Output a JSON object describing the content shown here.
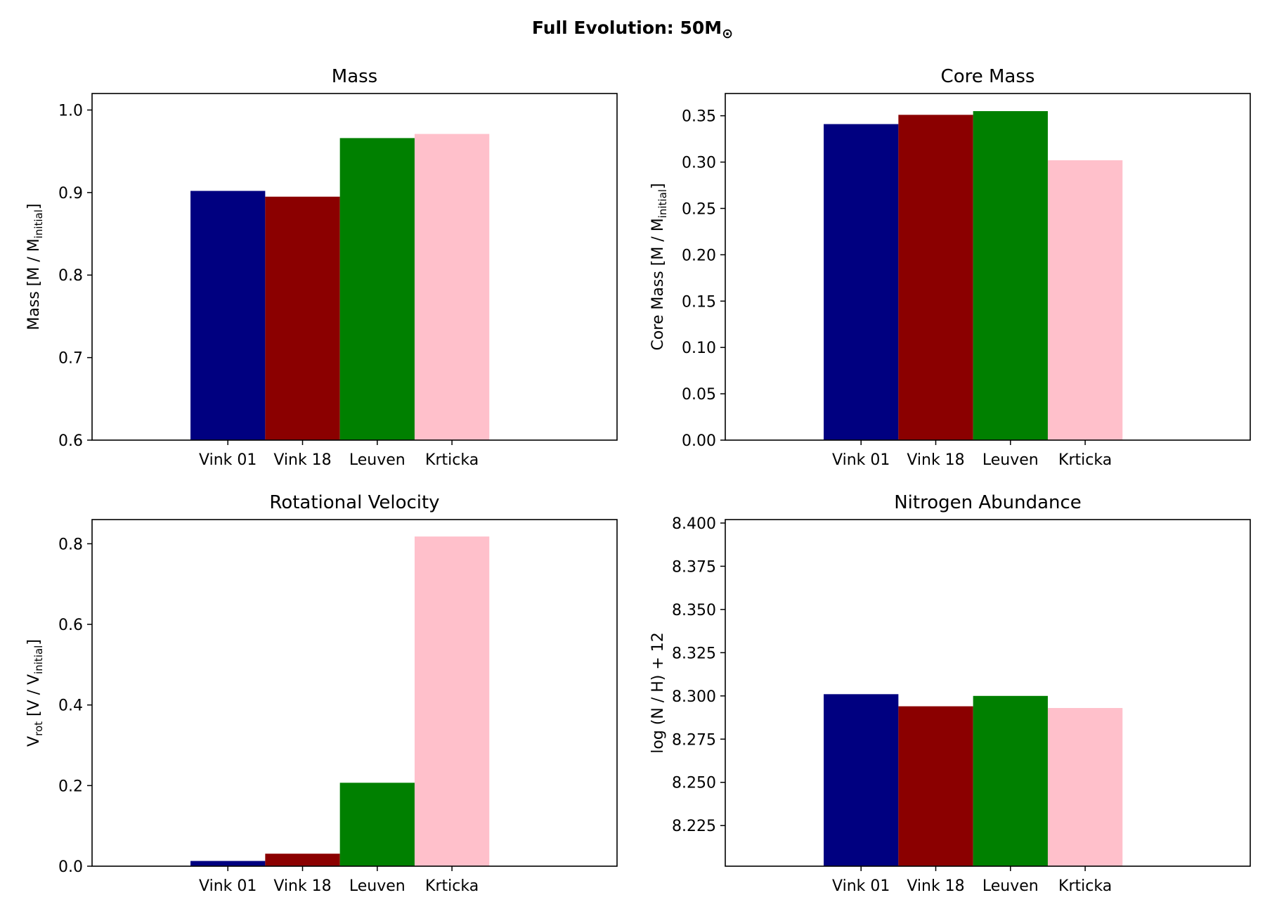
{
  "figure": {
    "suptitle": "Full Evolution: 50M",
    "suptitle_symbol": "⊙"
  },
  "chart_data": [
    {
      "type": "bar",
      "title": "Mass",
      "ylabel": "Mass [M / M",
      "ylabel_sub": "initial",
      "ylabel_end": "]",
      "categories": [
        "Vink 01",
        "Vink 18",
        "Leuven",
        "Krticka"
      ],
      "values": [
        0.902,
        0.895,
        0.966,
        0.971
      ],
      "colors": [
        "#000080",
        "#8b0000",
        "#008000",
        "#ffc0cb"
      ],
      "ylim": [
        0.6,
        1.02
      ],
      "yticks": [
        0.6,
        0.7,
        0.8,
        0.9,
        1.0
      ],
      "ytick_labels": [
        "0.6",
        "0.7",
        "0.8",
        "0.9",
        "1.0"
      ],
      "grid": false
    },
    {
      "type": "bar",
      "title": "Core Mass",
      "ylabel": "Core Mass [M / M",
      "ylabel_sub": "initial",
      "ylabel_end": "]",
      "categories": [
        "Vink 01",
        "Vink 18",
        "Leuven",
        "Krticka"
      ],
      "values": [
        0.341,
        0.351,
        0.355,
        0.302
      ],
      "colors": [
        "#000080",
        "#8b0000",
        "#008000",
        "#ffc0cb"
      ],
      "ylim": [
        0.0,
        0.374
      ],
      "yticks": [
        0.0,
        0.05,
        0.1,
        0.15,
        0.2,
        0.25,
        0.3,
        0.35
      ],
      "ytick_labels": [
        "0.00",
        "0.05",
        "0.10",
        "0.15",
        "0.20",
        "0.25",
        "0.30",
        "0.35"
      ],
      "grid": false
    },
    {
      "type": "bar",
      "title": "Rotational Velocity",
      "ylabel": "V",
      "ylabel_sub": "rot",
      "ylabel_end": " [V / V",
      "ylabel_sub2": "initial",
      "ylabel_end2": "]",
      "categories": [
        "Vink 01",
        "Vink 18",
        "Leuven",
        "Krticka"
      ],
      "values": [
        0.013,
        0.031,
        0.207,
        0.818
      ],
      "colors": [
        "#000080",
        "#8b0000",
        "#008000",
        "#ffc0cb"
      ],
      "ylim": [
        0.0,
        0.86
      ],
      "yticks": [
        0.0,
        0.2,
        0.4,
        0.6,
        0.8
      ],
      "ytick_labels": [
        "0.0",
        "0.2",
        "0.4",
        "0.6",
        "0.8"
      ],
      "grid": false
    },
    {
      "type": "bar",
      "title": "Nitrogen Abundance",
      "ylabel": "log (N / H) + 12",
      "categories": [
        "Vink 01",
        "Vink 18",
        "Leuven",
        "Krticka"
      ],
      "values": [
        8.301,
        8.294,
        8.3,
        8.293
      ],
      "colors": [
        "#000080",
        "#8b0000",
        "#008000",
        "#ffc0cb"
      ],
      "ylim": [
        8.2015,
        8.402
      ],
      "yticks": [
        8.225,
        8.25,
        8.275,
        8.3,
        8.325,
        8.35,
        8.375,
        8.4
      ],
      "ytick_labels": [
        "8.225",
        "8.250",
        "8.275",
        "8.300",
        "8.325",
        "8.350",
        "8.375",
        "8.400"
      ],
      "grid": false
    }
  ]
}
